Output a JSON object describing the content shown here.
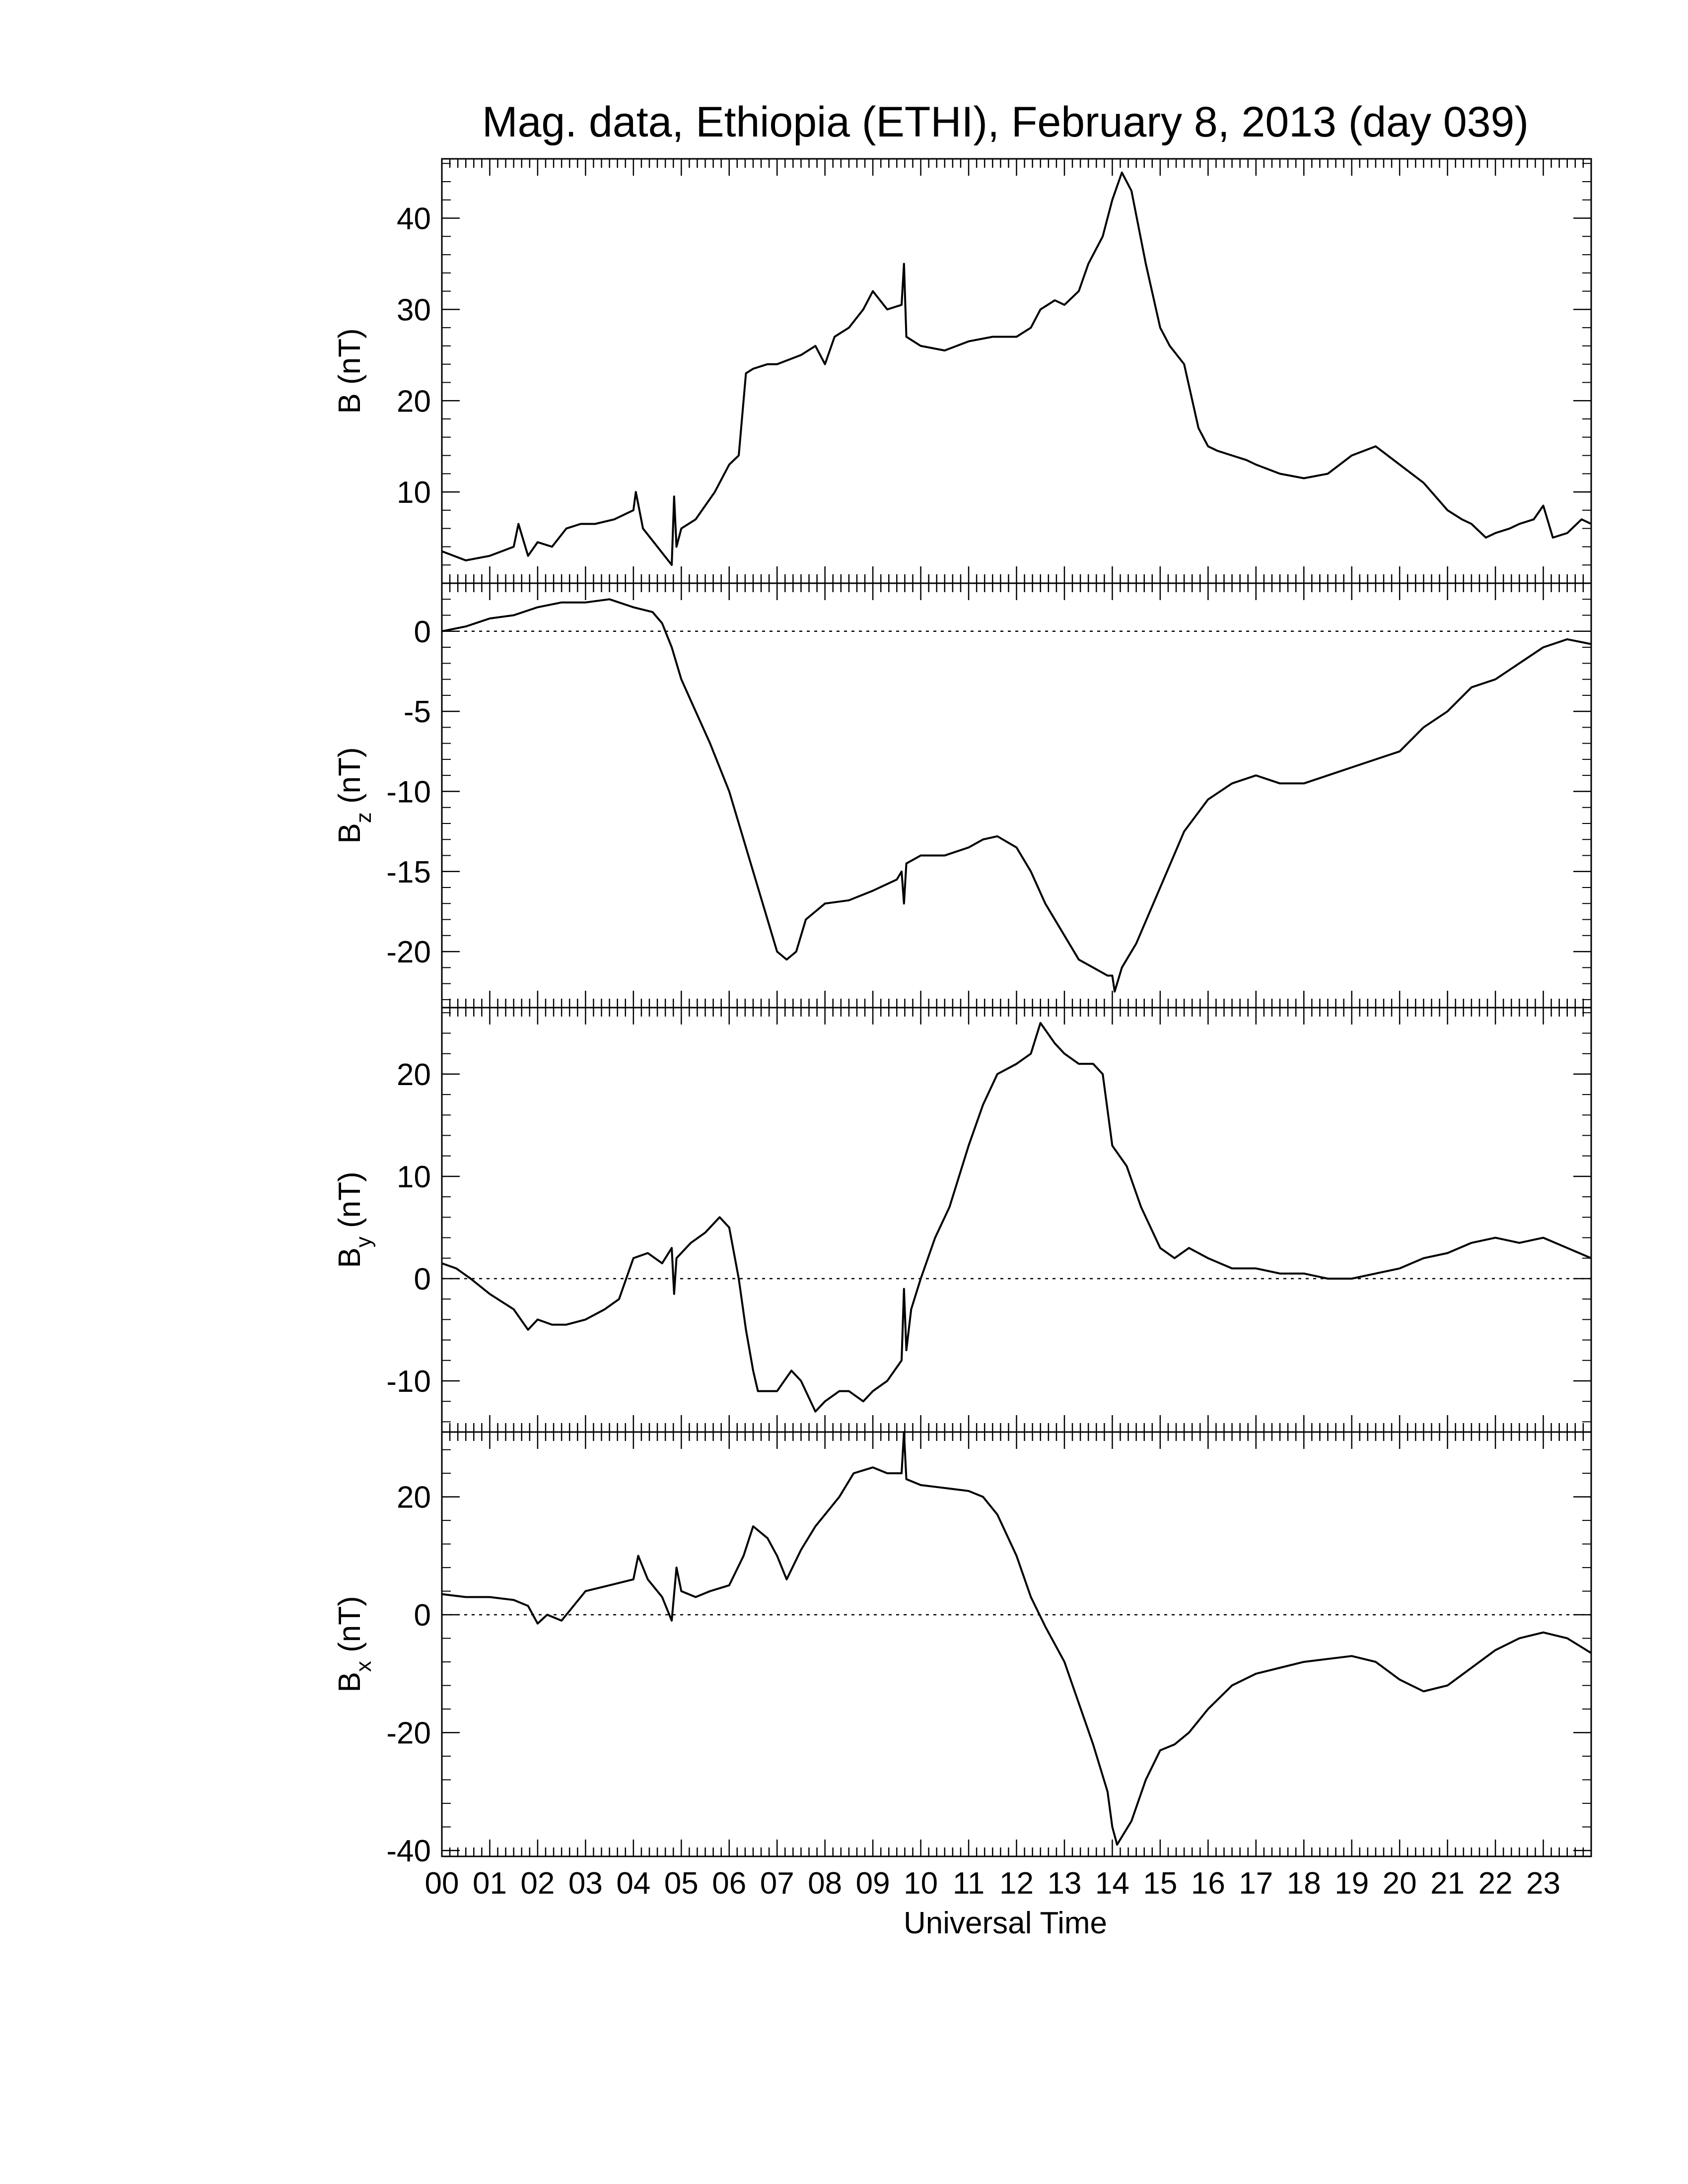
{
  "chart_data": {
    "type": "line",
    "title": "Mag. data, Ethiopia (ETHI), February 8, 2013 (day 039)",
    "xlabel": "Universal Time",
    "xlim": [
      0,
      24
    ],
    "x_tick_labels": [
      "00",
      "01",
      "02",
      "03",
      "04",
      "05",
      "06",
      "07",
      "08",
      "09",
      "10",
      "11",
      "12",
      "13",
      "14",
      "15",
      "16",
      "17",
      "18",
      "19",
      "20",
      "21",
      "22",
      "23"
    ],
    "panels": [
      {
        "id": "B",
        "ylabel": "B (nT)",
        "ylabel_base": "B",
        "ylabel_sub": "",
        "ylabel_unit": " (nT)",
        "ylim": [
          0,
          46.5
        ],
        "yticks": [
          10,
          20,
          30,
          40
        ],
        "ytick_labels": [
          "10",
          "20",
          "30",
          "40"
        ],
        "zero_line": false,
        "x": [
          0,
          0.5,
          1,
          1.5,
          1.6,
          1.8,
          2,
          2.3,
          2.6,
          2.9,
          3.2,
          3.6,
          4,
          4.05,
          4.2,
          4.5,
          4.8,
          4.85,
          4.9,
          5,
          5.3,
          5.7,
          6,
          6.2,
          6.35,
          6.5,
          6.8,
          7,
          7.5,
          7.8,
          8,
          8.2,
          8.5,
          8.8,
          9,
          9.3,
          9.6,
          9.65,
          9.7,
          10,
          10.5,
          11,
          11.5,
          12,
          12.3,
          12.5,
          12.8,
          13,
          13.3,
          13.5,
          13.8,
          14,
          14.2,
          14.4,
          14.7,
          15,
          15.2,
          15.5,
          15.8,
          16,
          16.2,
          16.5,
          16.8,
          17,
          17.5,
          18,
          18.5,
          19,
          19.5,
          20,
          20.5,
          21,
          21.3,
          21.5,
          21.8,
          22,
          22.3,
          22.5,
          22.8,
          23,
          23.2,
          23.5,
          23.8,
          24
        ],
        "y": [
          3.5,
          2.5,
          3,
          4,
          6.5,
          3,
          4.5,
          4,
          6,
          6.5,
          6.5,
          7,
          8,
          10,
          6,
          4,
          2,
          9.5,
          4,
          6,
          7,
          10,
          13,
          14,
          23,
          23.5,
          24,
          24,
          25,
          26,
          24,
          27,
          28,
          30,
          32,
          30,
          30.5,
          35,
          27,
          26,
          25.5,
          26.5,
          27,
          27,
          28,
          30,
          31,
          30.5,
          32,
          35,
          38,
          42,
          45,
          43,
          35,
          28,
          26,
          24,
          17,
          15,
          14.5,
          14,
          13.5,
          13,
          12,
          11.5,
          12,
          14,
          15,
          13,
          11,
          8,
          7,
          6.5,
          5,
          5.5,
          6,
          6.5,
          7,
          8.5,
          5,
          5.5,
          7,
          6.5
        ]
      },
      {
        "id": "Bz",
        "ylabel": "Bz (nT)",
        "ylabel_base": "B",
        "ylabel_sub": "z",
        "ylabel_unit": " (nT)",
        "ylim": [
          -23.5,
          3
        ],
        "yticks": [
          0,
          -5,
          -10,
          -15,
          -20
        ],
        "ytick_labels": [
          "0",
          "-5",
          "-10",
          "-15",
          "-20"
        ],
        "zero_line": true,
        "x": [
          0,
          0.5,
          1,
          1.5,
          2,
          2.5,
          3,
          3.5,
          4,
          4.4,
          4.6,
          4.8,
          5,
          5.3,
          5.6,
          6,
          6.3,
          6.5,
          6.8,
          7,
          7.2,
          7.4,
          7.6,
          7.8,
          8,
          8.5,
          9,
          9.5,
          9.6,
          9.65,
          9.7,
          10,
          10.5,
          11,
          11.3,
          11.6,
          12,
          12.3,
          12.6,
          13,
          13.3,
          13.6,
          13.9,
          14.0,
          14.05,
          14.2,
          14.5,
          15,
          15.5,
          16,
          16.5,
          17,
          17.5,
          18,
          18.5,
          19,
          19.5,
          20,
          20.5,
          21,
          21.5,
          22,
          22.5,
          23,
          23.5,
          24
        ],
        "y": [
          0,
          0.3,
          0.8,
          1,
          1.5,
          1.8,
          1.8,
          2,
          1.5,
          1.2,
          0.5,
          -1,
          -3,
          -5,
          -7,
          -10,
          -13,
          -15,
          -18,
          -20,
          -20.5,
          -20,
          -18,
          -17.5,
          -17,
          -16.8,
          -16.2,
          -15.5,
          -15,
          -17,
          -14.5,
          -14,
          -14,
          -13.5,
          -13,
          -12.8,
          -13.5,
          -15,
          -17,
          -19,
          -20.5,
          -21,
          -21.5,
          -21.5,
          -22.5,
          -21,
          -19.5,
          -16,
          -12.5,
          -10.5,
          -9.5,
          -9,
          -9.5,
          -9.5,
          -9,
          -8.5,
          -8,
          -7.5,
          -6,
          -5,
          -3.5,
          -3,
          -2,
          -1,
          -0.5,
          -0.8
        ]
      },
      {
        "id": "By",
        "ylabel": "By (nT)",
        "ylabel_base": "B",
        "ylabel_sub": "y",
        "ylabel_unit": " (nT)",
        "ylim": [
          -15,
          26.5
        ],
        "yticks": [
          20,
          10,
          0,
          -10
        ],
        "ytick_labels": [
          "20",
          "10",
          "0",
          "-10"
        ],
        "zero_line": true,
        "x": [
          0,
          0.3,
          0.6,
          1,
          1.5,
          1.8,
          2,
          2.3,
          2.6,
          3,
          3.4,
          3.7,
          4,
          4.3,
          4.6,
          4.8,
          4.85,
          4.9,
          5.2,
          5.5,
          5.8,
          6,
          6.2,
          6.35,
          6.5,
          6.6,
          7,
          7.3,
          7.5,
          7.8,
          8,
          8.3,
          8.5,
          8.8,
          9,
          9.3,
          9.6,
          9.65,
          9.7,
          9.8,
          10,
          10.3,
          10.6,
          11,
          11.3,
          11.6,
          12,
          12.3,
          12.5,
          12.8,
          13,
          13.3,
          13.6,
          13.8,
          14,
          14.3,
          14.6,
          15,
          15.3,
          15.6,
          16,
          16.5,
          17,
          17.5,
          18,
          18.5,
          19,
          19.5,
          20,
          20.5,
          21,
          21.5,
          22,
          22.5,
          23,
          23.5,
          24
        ],
        "y": [
          1.5,
          1,
          0,
          -1.5,
          -3,
          -5,
          -4,
          -4.5,
          -4.5,
          -4,
          -3,
          -2,
          2,
          2.5,
          1.5,
          3,
          -1.5,
          2,
          3.5,
          4.5,
          6,
          5,
          0,
          -5,
          -9,
          -11,
          -11,
          -9,
          -10,
          -13,
          -12,
          -11,
          -11,
          -12,
          -11,
          -10,
          -8,
          -1,
          -7,
          -3,
          0,
          4,
          7,
          13,
          17,
          20,
          21,
          22,
          25,
          23,
          22,
          21,
          21,
          20,
          13,
          11,
          7,
          3,
          2,
          3,
          2,
          1,
          1,
          0.5,
          0.5,
          0,
          0,
          0.5,
          1,
          2,
          2.5,
          3.5,
          4,
          3.5,
          4,
          3,
          2
        ]
      },
      {
        "id": "Bx",
        "ylabel": "Bx (nT)",
        "ylabel_base": "B",
        "ylabel_sub": "x",
        "ylabel_unit": " (nT)",
        "ylim": [
          -41,
          31
        ],
        "yticks": [
          20,
          0,
          -20,
          -40
        ],
        "ytick_labels": [
          "20",
          "0",
          "-20",
          "-40"
        ],
        "zero_line": true,
        "x": [
          0,
          0.5,
          1,
          1.5,
          1.8,
          2,
          2.2,
          2.5,
          3,
          3.5,
          4,
          4.1,
          4.3,
          4.6,
          4.8,
          4.9,
          5,
          5.3,
          5.6,
          6,
          6.3,
          6.5,
          6.8,
          7,
          7.2,
          7.5,
          7.8,
          8,
          8.3,
          8.6,
          9,
          9.3,
          9.6,
          9.65,
          9.7,
          10,
          10.5,
          11,
          11.3,
          11.6,
          12,
          12.3,
          12.6,
          13,
          13.3,
          13.6,
          13.9,
          14.0,
          14.1,
          14.4,
          14.7,
          15,
          15.3,
          15.6,
          16,
          16.5,
          17,
          17.5,
          18,
          18.5,
          19,
          19.5,
          20,
          20.5,
          21,
          21.5,
          22,
          22.5,
          23,
          23.5,
          24
        ],
        "y": [
          3.5,
          3,
          3,
          2.5,
          1.5,
          -1.5,
          0,
          -1,
          4,
          5,
          6,
          10,
          6,
          3,
          -1,
          8,
          4,
          3,
          4,
          5,
          10,
          15,
          13,
          10,
          6,
          11,
          15,
          17,
          20,
          24,
          25,
          24,
          24,
          31,
          23,
          22,
          21.5,
          21,
          20,
          17,
          10,
          3,
          -2,
          -8,
          -15,
          -22,
          -30,
          -36,
          -39,
          -35,
          -28,
          -23,
          -22,
          -20,
          -16,
          -12,
          -10,
          -9,
          -8,
          -7.5,
          -7,
          -8,
          -11,
          -13,
          -12,
          -9,
          -6,
          -4,
          -3,
          -4,
          -6.5
        ]
      }
    ]
  }
}
